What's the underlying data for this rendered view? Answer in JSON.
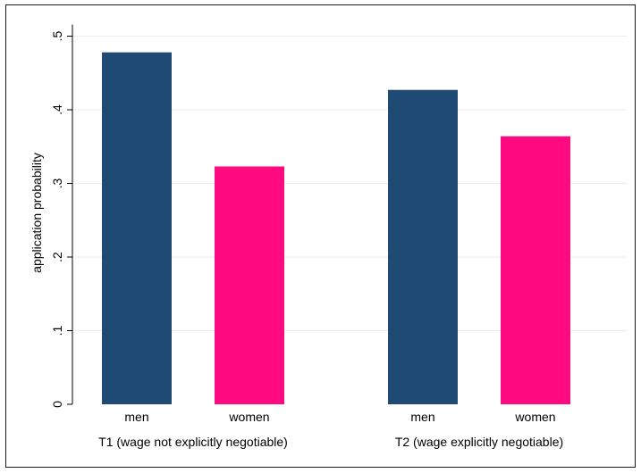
{
  "chart_data": {
    "type": "bar",
    "title": "",
    "xlabel": "",
    "ylabel": "application probability",
    "ylim": [
      0,
      0.52
    ],
    "yticks": [
      0,
      0.1,
      0.2,
      0.3,
      0.4,
      0.5
    ],
    "ytick_labels": [
      "0",
      ".1",
      ".2",
      ".3",
      ".4",
      ".5"
    ],
    "grid": true,
    "groups": [
      {
        "label": "T1 (wage not explicitly negotiable)",
        "bars": [
          {
            "category": "men",
            "value": 0.478,
            "color": "#1f4a73"
          },
          {
            "category": "women",
            "value": 0.323,
            "color": "#ff0a80"
          }
        ]
      },
      {
        "label": "T2 (wage explicitly negotiable)",
        "bars": [
          {
            "category": "men",
            "value": 0.427,
            "color": "#1f4a73"
          },
          {
            "category": "women",
            "value": 0.364,
            "color": "#ff0a80"
          }
        ]
      }
    ]
  }
}
